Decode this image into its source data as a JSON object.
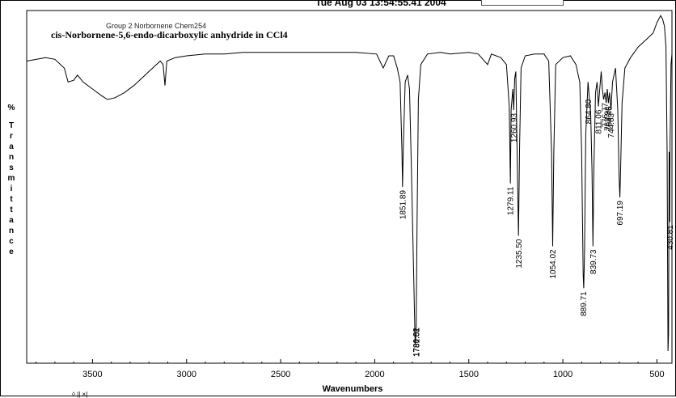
{
  "window": {
    "header_text": "Tue Aug 03 13:54:55.41 2004"
  },
  "bottom_widget": {
    "text": "◊ || ×|"
  },
  "chart_data": {
    "type": "line",
    "subtitle": "Group 2 Norbornene Chem254",
    "title": "cis-Norbornene-5,6-endo-dicarboxylic anhydride in CCl4",
    "xlabel": "Wavenumbers",
    "ylabel": "% Transmittance",
    "xlim": [
      3850,
      420
    ],
    "x_reversed": true,
    "ylim": [
      0,
      100
    ],
    "x_ticks": [
      3500,
      3000,
      2500,
      2000,
      1500,
      1000,
      500
    ],
    "grid": false,
    "series": [
      {
        "points": [
          [
            3850,
            86
          ],
          [
            3750,
            87
          ],
          [
            3700,
            86.5
          ],
          [
            3650,
            84
          ],
          [
            3630,
            80
          ],
          [
            3600,
            80.5
          ],
          [
            3580,
            82
          ],
          [
            3550,
            80
          ],
          [
            3500,
            78
          ],
          [
            3450,
            76
          ],
          [
            3420,
            75
          ],
          [
            3380,
            75.5
          ],
          [
            3330,
            77
          ],
          [
            3280,
            79
          ],
          [
            3240,
            81
          ],
          [
            3200,
            83
          ],
          [
            3160,
            85
          ],
          [
            3140,
            86
          ],
          [
            3125,
            85
          ],
          [
            3115,
            79
          ],
          [
            3105,
            86
          ],
          [
            3060,
            87
          ],
          [
            3000,
            87.5
          ],
          [
            2900,
            88
          ],
          [
            2800,
            88
          ],
          [
            2700,
            88.5
          ],
          [
            2500,
            88.5
          ],
          [
            2300,
            88.5
          ],
          [
            2100,
            88.5
          ],
          [
            1990,
            88
          ],
          [
            1955,
            84
          ],
          [
            1925,
            87.5
          ],
          [
            1900,
            87.5
          ],
          [
            1880,
            84
          ],
          [
            1865,
            80
          ],
          [
            1855,
            60
          ],
          [
            1852,
            50
          ],
          [
            1848,
            62
          ],
          [
            1838,
            80
          ],
          [
            1825,
            82
          ],
          [
            1815,
            78
          ],
          [
            1805,
            55
          ],
          [
            1795,
            30
          ],
          [
            1785,
            5
          ],
          [
            1780,
            8
          ],
          [
            1775,
            40
          ],
          [
            1768,
            75
          ],
          [
            1755,
            85
          ],
          [
            1720,
            88
          ],
          [
            1650,
            88.5
          ],
          [
            1600,
            88
          ],
          [
            1500,
            88.5
          ],
          [
            1450,
            88
          ],
          [
            1400,
            85
          ],
          [
            1380,
            88
          ],
          [
            1330,
            87
          ],
          [
            1300,
            85
          ],
          [
            1285,
            73
          ],
          [
            1279,
            51
          ],
          [
            1275,
            72
          ],
          [
            1266,
            78
          ],
          [
            1261,
            72
          ],
          [
            1256,
            81
          ],
          [
            1250,
            83
          ],
          [
            1243,
            60
          ],
          [
            1236,
            36
          ],
          [
            1230,
            62
          ],
          [
            1222,
            84
          ],
          [
            1200,
            87.5
          ],
          [
            1150,
            88
          ],
          [
            1100,
            88
          ],
          [
            1075,
            86
          ],
          [
            1060,
            60
          ],
          [
            1054,
            33
          ],
          [
            1048,
            60
          ],
          [
            1038,
            85
          ],
          [
            1000,
            87
          ],
          [
            960,
            87.5
          ],
          [
            930,
            85
          ],
          [
            910,
            80
          ],
          [
            900,
            60
          ],
          [
            892,
            25
          ],
          [
            889,
            21
          ],
          [
            885,
            30
          ],
          [
            878,
            65
          ],
          [
            866,
            80
          ],
          [
            860,
            76
          ],
          [
            852,
            71
          ],
          [
            845,
            55
          ],
          [
            840,
            33
          ],
          [
            835,
            55
          ],
          [
            826,
            77
          ],
          [
            818,
            80
          ],
          [
            811,
            73
          ],
          [
            804,
            78
          ],
          [
            796,
            83
          ],
          [
            790,
            78
          ],
          [
            783,
            75
          ],
          [
            776,
            77
          ],
          [
            770,
            74
          ],
          [
            764,
            78
          ],
          [
            758,
            74
          ],
          [
            752,
            77
          ],
          [
            744,
            72
          ],
          [
            736,
            80
          ],
          [
            720,
            84
          ],
          [
            708,
            72
          ],
          [
            701,
            53
          ],
          [
            697,
            47
          ],
          [
            693,
            55
          ],
          [
            685,
            74
          ],
          [
            670,
            84
          ],
          [
            640,
            87
          ],
          [
            600,
            90
          ],
          [
            560,
            92
          ],
          [
            520,
            94
          ],
          [
            500,
            97
          ],
          [
            480,
            99
          ],
          [
            470,
            98
          ],
          [
            460,
            96
          ],
          [
            452,
            90
          ],
          [
            446,
            60
          ],
          [
            441,
            3
          ],
          [
            438,
            8
          ],
          [
            435,
            60
          ],
          [
            432,
            40
          ],
          [
            430,
            64
          ],
          [
            428,
            70
          ],
          [
            425,
            85
          ],
          [
            420,
            88
          ]
        ]
      }
    ],
    "peak_labels": [
      {
        "x": 1851.89,
        "text": "1851.89"
      },
      {
        "x": 1781,
        "text": "1780.82"
      },
      {
        "x": 1778,
        "text": "1781.51"
      },
      {
        "x": 1279.11,
        "text": "1279.11"
      },
      {
        "x": 1260.93,
        "text": "1260.93"
      },
      {
        "x": 1235.5,
        "text": "1235.50"
      },
      {
        "x": 1054.02,
        "text": "1054.02"
      },
      {
        "x": 889.71,
        "text": "889.71"
      },
      {
        "x": 864.8,
        "text": "864.80"
      },
      {
        "x": 839.73,
        "text": "839.73"
      },
      {
        "x": 811.06,
        "text": "811.06"
      },
      {
        "x": 777,
        "text": "776.77"
      },
      {
        "x": 764,
        "text": "763.94"
      },
      {
        "x": 755,
        "text": "754.46"
      },
      {
        "x": 744.63,
        "text": "744.63"
      },
      {
        "x": 697.19,
        "text": "697.19"
      },
      {
        "x": 430.81,
        "text": "430.81"
      }
    ]
  }
}
